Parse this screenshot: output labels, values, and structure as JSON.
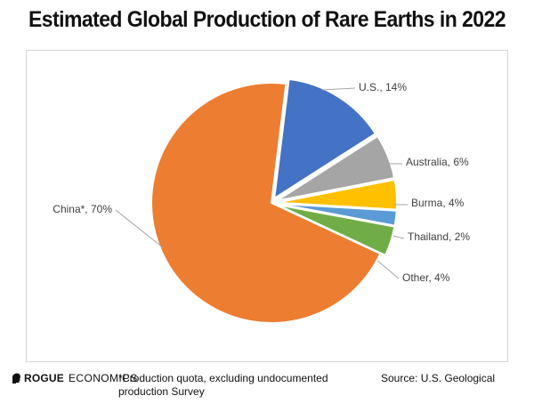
{
  "title": "Estimated Global Production of Rare Earths in 2022",
  "chart_data": {
    "type": "pie",
    "title": "Estimated Global Production of Rare Earths in 2022",
    "slices": [
      {
        "label": "U.S., 14%",
        "value": 14,
        "color": "#4472C4"
      },
      {
        "label": "Australia, 6%",
        "value": 6,
        "color": "#A5A5A5"
      },
      {
        "label": "Burma, 4%",
        "value": 4,
        "color": "#FFC000"
      },
      {
        "label": "Thailand, 2%",
        "value": 2,
        "color": "#5B9BD5"
      },
      {
        "label": "Other, 4%",
        "value": 4,
        "color": "#70AD47"
      },
      {
        "label": "China*, 70%",
        "value": 70,
        "color": "#ED7D31"
      }
    ],
    "legend": "none"
  },
  "footer": {
    "logo_bold": "ROGUE",
    "logo_regular": "ECONOMICS",
    "logo_icon": "rogue-head-icon",
    "note": "*Production quota, excluding undocumented production Survey",
    "source": "Source: U.S. Geological"
  }
}
